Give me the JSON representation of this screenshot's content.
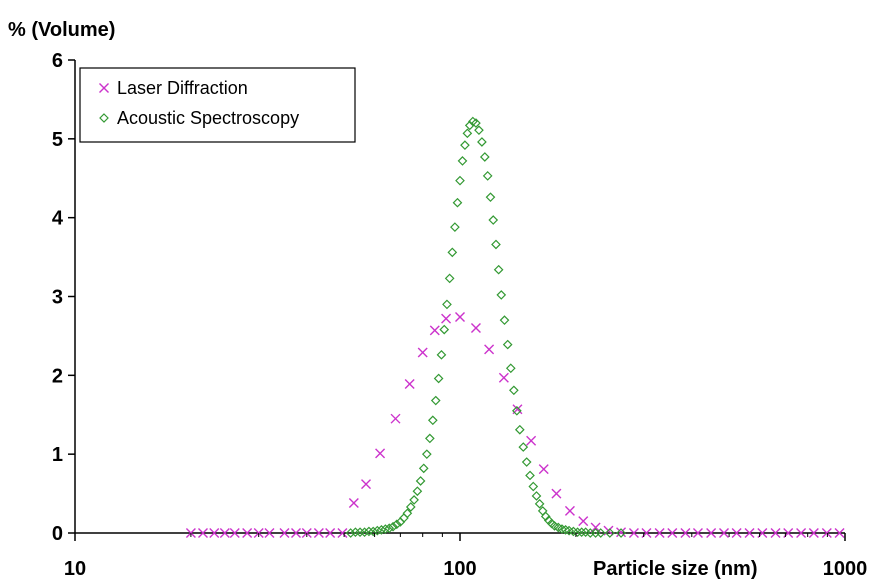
{
  "chart_data": {
    "type": "scatter",
    "ylabel": "% (Volume)",
    "xlabel": "Particle size (nm)",
    "x_scale": "log",
    "xlim": [
      10,
      1000
    ],
    "ylim": [
      0,
      6
    ],
    "x_ticks": [
      10,
      100,
      1000
    ],
    "y_ticks": [
      0,
      1,
      2,
      3,
      4,
      5,
      6
    ],
    "grid": false,
    "legend_position": "top-left",
    "series": [
      {
        "name": "Laser Diffraction",
        "marker": "x",
        "color": "#cc33cc",
        "points": [
          [
            20,
            0
          ],
          [
            21.5,
            0
          ],
          [
            23,
            0
          ],
          [
            24.5,
            0
          ],
          [
            26,
            0
          ],
          [
            28,
            0
          ],
          [
            30,
            0
          ],
          [
            32,
            0
          ],
          [
            35,
            0
          ],
          [
            37.5,
            0
          ],
          [
            40,
            0
          ],
          [
            43,
            0
          ],
          [
            46,
            0
          ],
          [
            49.5,
            0
          ],
          [
            53,
            0.38
          ],
          [
            57,
            0.62
          ],
          [
            62,
            1.01
          ],
          [
            68,
            1.45
          ],
          [
            74,
            1.89
          ],
          [
            80,
            2.29
          ],
          [
            86,
            2.57
          ],
          [
            92,
            2.72
          ],
          [
            100,
            2.74
          ],
          [
            110,
            2.6
          ],
          [
            119,
            2.33
          ],
          [
            130,
            1.97
          ],
          [
            141,
            1.57
          ],
          [
            153,
            1.17
          ],
          [
            165,
            0.81
          ],
          [
            178,
            0.5
          ],
          [
            193,
            0.28
          ],
          [
            209,
            0.15
          ],
          [
            225,
            0.07
          ],
          [
            243,
            0.03
          ],
          [
            262,
            0.01
          ],
          [
            283,
            0
          ],
          [
            305,
            0
          ],
          [
            330,
            0
          ],
          [
            356,
            0
          ],
          [
            385,
            0
          ],
          [
            415,
            0
          ],
          [
            449,
            0
          ],
          [
            485,
            0
          ],
          [
            523,
            0
          ],
          [
            565,
            0
          ],
          [
            610,
            0
          ],
          [
            660,
            0
          ],
          [
            712,
            0
          ],
          [
            769,
            0
          ],
          [
            830,
            0
          ],
          [
            897,
            0
          ],
          [
            968,
            0
          ]
        ]
      },
      {
        "name": "Acoustic Spectroscopy",
        "marker": "diamond",
        "color": "#339933",
        "points": [
          [
            52,
            0
          ],
          [
            53.5,
            0.01
          ],
          [
            55,
            0.01
          ],
          [
            56.5,
            0.01
          ],
          [
            58,
            0.02
          ],
          [
            59.5,
            0.02
          ],
          [
            61,
            0.03
          ],
          [
            62.5,
            0.04
          ],
          [
            64,
            0.05
          ],
          [
            65.5,
            0.06
          ],
          [
            67,
            0.08
          ],
          [
            68.5,
            0.11
          ],
          [
            70,
            0.14
          ],
          [
            71.5,
            0.19
          ],
          [
            73,
            0.25
          ],
          [
            74.5,
            0.33
          ],
          [
            76,
            0.42
          ],
          [
            77.5,
            0.53
          ],
          [
            79,
            0.66
          ],
          [
            80.5,
            0.82
          ],
          [
            82,
            1.0
          ],
          [
            83.5,
            1.2
          ],
          [
            85,
            1.43
          ],
          [
            86.5,
            1.68
          ],
          [
            88,
            1.96
          ],
          [
            89.5,
            2.26
          ],
          [
            91,
            2.58
          ],
          [
            92.5,
            2.9
          ],
          [
            94,
            3.23
          ],
          [
            95.5,
            3.56
          ],
          [
            97,
            3.88
          ],
          [
            98.5,
            4.19
          ],
          [
            100,
            4.47
          ],
          [
            101.5,
            4.72
          ],
          [
            103,
            4.92
          ],
          [
            104.5,
            5.07
          ],
          [
            106,
            5.17
          ],
          [
            108,
            5.22
          ],
          [
            110,
            5.2
          ],
          [
            112,
            5.11
          ],
          [
            114,
            4.96
          ],
          [
            116,
            4.77
          ],
          [
            118,
            4.53
          ],
          [
            120,
            4.26
          ],
          [
            122,
            3.97
          ],
          [
            124,
            3.66
          ],
          [
            126,
            3.34
          ],
          [
            128,
            3.02
          ],
          [
            130.5,
            2.7
          ],
          [
            133,
            2.39
          ],
          [
            135.5,
            2.09
          ],
          [
            138,
            1.81
          ],
          [
            140.5,
            1.55
          ],
          [
            143,
            1.31
          ],
          [
            146,
            1.09
          ],
          [
            149,
            0.9
          ],
          [
            152,
            0.73
          ],
          [
            155,
            0.59
          ],
          [
            158,
            0.47
          ],
          [
            161,
            0.37
          ],
          [
            164,
            0.28
          ],
          [
            167,
            0.21
          ],
          [
            170,
            0.16
          ],
          [
            173,
            0.12
          ],
          [
            176,
            0.09
          ],
          [
            180,
            0.07
          ],
          [
            184,
            0.05
          ],
          [
            188,
            0.04
          ],
          [
            192,
            0.03
          ],
          [
            197,
            0.02
          ],
          [
            202,
            0.01
          ],
          [
            207,
            0.01
          ],
          [
            212,
            0.01
          ],
          [
            218,
            0
          ],
          [
            225,
            0
          ],
          [
            232,
            0
          ],
          [
            245,
            0
          ],
          [
            262,
            0
          ]
        ]
      }
    ]
  }
}
